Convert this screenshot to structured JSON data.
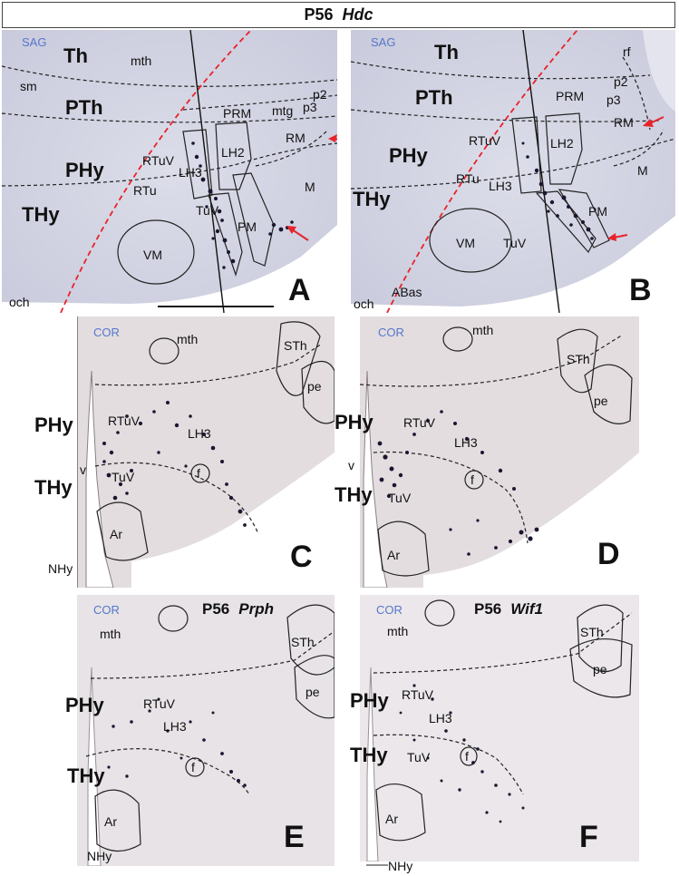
{
  "header": {
    "age": "P56",
    "gene": "Hdc"
  },
  "panels": {
    "A": {
      "letter": "A",
      "view": "SAG",
      "labels": {
        "th": "Th",
        "mth": "mth",
        "sm": "sm",
        "pth": "PTh",
        "p2": "p2",
        "p3": "p3",
        "mtg": "mtg",
        "prm": "PRM",
        "rm": "RM",
        "rtuv": "RTuV",
        "lh2": "LH2",
        "lh3": "LH3",
        "phy": "PHy",
        "rtu": "RTu",
        "m": "M",
        "pm": "PM",
        "thy": "THy",
        "vm": "VM",
        "tuv": "TuV",
        "och": "och"
      }
    },
    "B": {
      "letter": "B",
      "view": "SAG",
      "labels": {
        "th": "Th",
        "rf": "rf",
        "p2": "p2",
        "p3": "p3",
        "pth": "PTh",
        "prm": "PRM",
        "rm": "RM",
        "rtuv": "RTuV",
        "lh2": "LH2",
        "phy": "PHy",
        "m": "M",
        "rtu": "RTu",
        "lh3": "LH3",
        "thy": "THy",
        "pm": "PM",
        "vm": "VM",
        "tuv": "TuV",
        "och": "och",
        "abas": "ABas"
      }
    },
    "C": {
      "letter": "C",
      "view": "COR",
      "labels": {
        "mth": "mth",
        "sth": "STh",
        "pe": "pe",
        "phy": "PHy",
        "rtuv": "RTuV",
        "lh3": "LH3",
        "v": "v",
        "f": "f",
        "thy": "THy",
        "tuv": "TuV",
        "ar": "Ar",
        "nhy": "NHy"
      }
    },
    "D": {
      "letter": "D",
      "view": "COR",
      "labels": {
        "mth": "mth",
        "sth": "STh",
        "pe": "pe",
        "phy": "PHy",
        "rtuv": "RTuV",
        "lh3": "LH3",
        "v": "v",
        "f": "f",
        "thy": "THy",
        "tuv": "TuV",
        "ar": "Ar"
      }
    },
    "E": {
      "letter": "E",
      "view": "COR",
      "age": "P56",
      "gene": "Prph",
      "labels": {
        "mth": "mth",
        "sth": "STh",
        "pe": "pe",
        "phy": "PHy",
        "rtuv": "RTuV",
        "lh3": "LH3",
        "f": "f",
        "thy": "THy",
        "ar": "Ar",
        "nhy": "NHy"
      }
    },
    "F": {
      "letter": "F",
      "view": "COR",
      "age": "P56",
      "gene": "Wif1",
      "labels": {
        "mth": "mth",
        "sth": "STh",
        "pe": "pe",
        "phy": "PHy",
        "rtuv": "RTuV",
        "lh3": "LH3",
        "f": "f",
        "thy": "THy",
        "tuv": "TuV",
        "ar": "Ar",
        "nhy": "NHy"
      }
    }
  },
  "colors": {
    "tissue": "#d7d8e6",
    "tissue_dark": "#c6c7da",
    "coronal": "#e3dde0",
    "coronal_dark": "#d5ccd1",
    "cells": "#1c1530",
    "red_line": "#e8232a",
    "view_label": "#5577cc"
  }
}
